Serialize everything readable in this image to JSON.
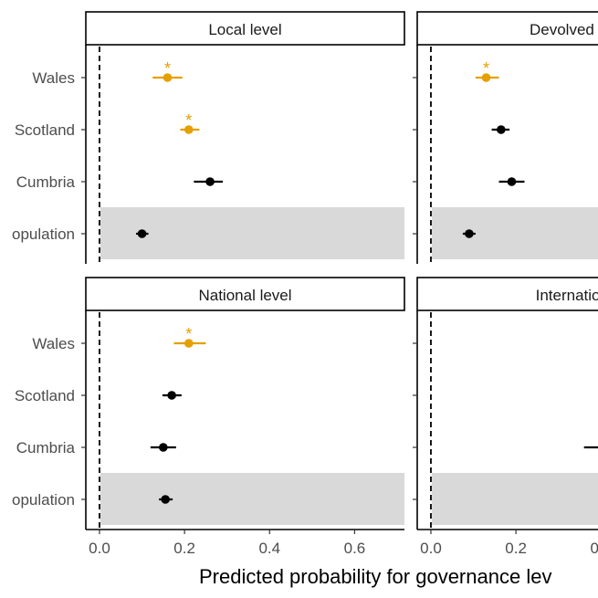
{
  "chart_data": {
    "type": "scatter",
    "subtype": "point-range-facets",
    "xlabel": "Predicted probability for governance lev",
    "x_ticks": [
      0.0,
      0.2,
      0.4,
      0.6
    ],
    "x_tick_labels": [
      "0.0",
      "0.2",
      "0.4",
      "0.6"
    ],
    "xlim": [
      -0.03,
      0.715
    ],
    "reference_line_x": 0,
    "categories": [
      "Wales",
      "Scotland",
      "Cumbria",
      "opulation"
    ],
    "highlight_row": "opulation",
    "significance_marker": "*",
    "colors": {
      "default": "#000000",
      "significant": "#E69F00",
      "highlight_band": "#D9D9D9",
      "strip_fill": "#FFFFFF",
      "axis": "#000000",
      "tick_label": "#4D4D4D"
    },
    "panels": [
      {
        "title": "Local level",
        "points": [
          {
            "category": "Wales",
            "estimate": 0.16,
            "low": 0.125,
            "high": 0.195,
            "significant": true
          },
          {
            "category": "Scotland",
            "estimate": 0.21,
            "low": 0.19,
            "high": 0.235,
            "significant": true
          },
          {
            "category": "Cumbria",
            "estimate": 0.26,
            "low": 0.222,
            "high": 0.29,
            "significant": false
          },
          {
            "category": "opulation",
            "estimate": 0.1,
            "low": 0.086,
            "high": 0.115,
            "significant": false
          }
        ]
      },
      {
        "title": "Devolved nati",
        "points": [
          {
            "category": "Wales",
            "estimate": 0.13,
            "low": 0.105,
            "high": 0.16,
            "significant": true
          },
          {
            "category": "Scotland",
            "estimate": 0.165,
            "low": 0.143,
            "high": 0.185,
            "significant": false
          },
          {
            "category": "Cumbria",
            "estimate": 0.19,
            "low": 0.16,
            "high": 0.22,
            "significant": false
          },
          {
            "category": "opulation",
            "estimate": 0.09,
            "low": 0.075,
            "high": 0.105,
            "significant": false
          }
        ]
      },
      {
        "title": "National level",
        "points": [
          {
            "category": "Wales",
            "estimate": 0.21,
            "low": 0.175,
            "high": 0.25,
            "significant": true
          },
          {
            "category": "Scotland",
            "estimate": 0.17,
            "low": 0.148,
            "high": 0.193,
            "significant": false
          },
          {
            "category": "Cumbria",
            "estimate": 0.15,
            "low": 0.12,
            "high": 0.18,
            "significant": false
          },
          {
            "category": "opulation",
            "estimate": 0.155,
            "low": 0.14,
            "high": 0.172,
            "significant": false
          }
        ]
      },
      {
        "title": "Internationa",
        "points": [
          {
            "category": "Cumbria",
            "estimate": null,
            "low": 0.36,
            "high": null,
            "significant": false
          }
        ]
      }
    ]
  }
}
